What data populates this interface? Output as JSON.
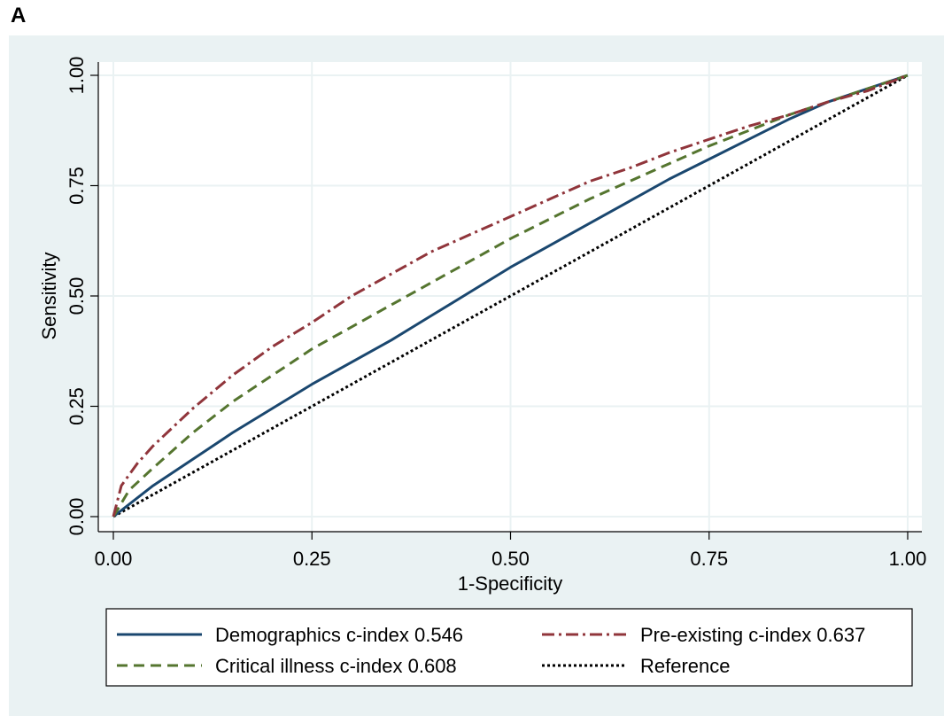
{
  "panel_label": "A",
  "chart_data": {
    "type": "line",
    "title": "",
    "xlabel": "1-Specificity",
    "ylabel": "Sensitivity",
    "xlim": [
      0,
      1
    ],
    "ylim": [
      0,
      1
    ],
    "xticks": [
      "0.00",
      "0.25",
      "0.50",
      "0.75",
      "1.00"
    ],
    "yticks": [
      "0.00",
      "0.25",
      "0.50",
      "0.75",
      "1.00"
    ],
    "grid": true,
    "legend_position": "bottom",
    "series": [
      {
        "name": "Demographics c-index 0.546",
        "color": "#1a476f",
        "dash": "solid",
        "x": [
          0,
          0.05,
          0.1,
          0.15,
          0.2,
          0.25,
          0.3,
          0.35,
          0.4,
          0.45,
          0.5,
          0.55,
          0.6,
          0.65,
          0.7,
          0.75,
          0.8,
          0.85,
          0.9,
          0.95,
          1.0
        ],
        "y": [
          0,
          0.07,
          0.13,
          0.19,
          0.245,
          0.3,
          0.35,
          0.4,
          0.455,
          0.51,
          0.565,
          0.615,
          0.665,
          0.715,
          0.765,
          0.81,
          0.855,
          0.9,
          0.94,
          0.97,
          1.0
        ]
      },
      {
        "name": "Pre-existing c-index 0.637",
        "color": "#90353b",
        "dash": "dashdot",
        "x": [
          0,
          0.01,
          0.03,
          0.05,
          0.1,
          0.15,
          0.2,
          0.25,
          0.3,
          0.35,
          0.4,
          0.45,
          0.5,
          0.55,
          0.6,
          0.65,
          0.7,
          0.75,
          0.8,
          0.85,
          0.9,
          0.95,
          1.0
        ],
        "y": [
          0,
          0.07,
          0.12,
          0.16,
          0.245,
          0.32,
          0.385,
          0.44,
          0.5,
          0.55,
          0.6,
          0.64,
          0.68,
          0.72,
          0.76,
          0.79,
          0.825,
          0.855,
          0.885,
          0.91,
          0.94,
          0.965,
          1.0
        ]
      },
      {
        "name": "Critical illness c-index 0.608",
        "color": "#55752f",
        "dash": "dashed",
        "x": [
          0,
          0.02,
          0.05,
          0.1,
          0.15,
          0.2,
          0.25,
          0.3,
          0.35,
          0.4,
          0.45,
          0.5,
          0.55,
          0.6,
          0.65,
          0.7,
          0.75,
          0.8,
          0.85,
          0.9,
          0.95,
          1.0
        ],
        "y": [
          0,
          0.06,
          0.11,
          0.19,
          0.26,
          0.32,
          0.38,
          0.43,
          0.48,
          0.53,
          0.58,
          0.63,
          0.675,
          0.72,
          0.76,
          0.8,
          0.84,
          0.875,
          0.91,
          0.94,
          0.97,
          1.0
        ]
      },
      {
        "name": "Reference",
        "color": "#000000",
        "dash": "dotted",
        "x": [
          0,
          1
        ],
        "y": [
          0,
          1
        ]
      }
    ],
    "legend_order": [
      0,
      1,
      2,
      3
    ]
  }
}
